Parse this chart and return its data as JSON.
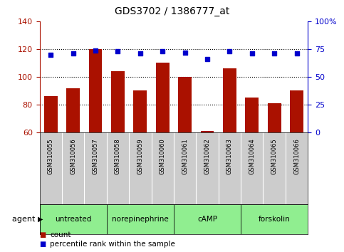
{
  "title": "GDS3702 / 1386777_at",
  "samples": [
    "GSM310055",
    "GSM310056",
    "GSM310057",
    "GSM310058",
    "GSM310059",
    "GSM310060",
    "GSM310061",
    "GSM310062",
    "GSM310063",
    "GSM310064",
    "GSM310065",
    "GSM310066"
  ],
  "counts": [
    86,
    92,
    120,
    104,
    90,
    110,
    100,
    61,
    106,
    85,
    81,
    90
  ],
  "percentiles": [
    70,
    71,
    74,
    73,
    71,
    73,
    72,
    66,
    73,
    71,
    71,
    71
  ],
  "agents": [
    {
      "label": "untreated",
      "start": 0,
      "end": 3,
      "color": "#AAFFAA"
    },
    {
      "label": "norepinephrine",
      "start": 3,
      "end": 6,
      "color": "#88EE88"
    },
    {
      "label": "cAMP",
      "start": 6,
      "end": 9,
      "color": "#66DD66"
    },
    {
      "label": "forskolin",
      "start": 9,
      "end": 12,
      "color": "#55CC55"
    }
  ],
  "ylim_left": [
    60,
    140
  ],
  "ylim_right": [
    0,
    100
  ],
  "yticks_left": [
    60,
    80,
    100,
    120,
    140
  ],
  "yticks_right": [
    0,
    25,
    50,
    75,
    100
  ],
  "ytick_labels_right": [
    "0",
    "25",
    "50",
    "75",
    "100%"
  ],
  "bar_color": "#AA1100",
  "dot_color": "#0000CC",
  "sample_bg": "#CCCCCC",
  "agent_color": "#90EE90",
  "legend_count_color": "#AA1100",
  "legend_pct_color": "#0000CC"
}
